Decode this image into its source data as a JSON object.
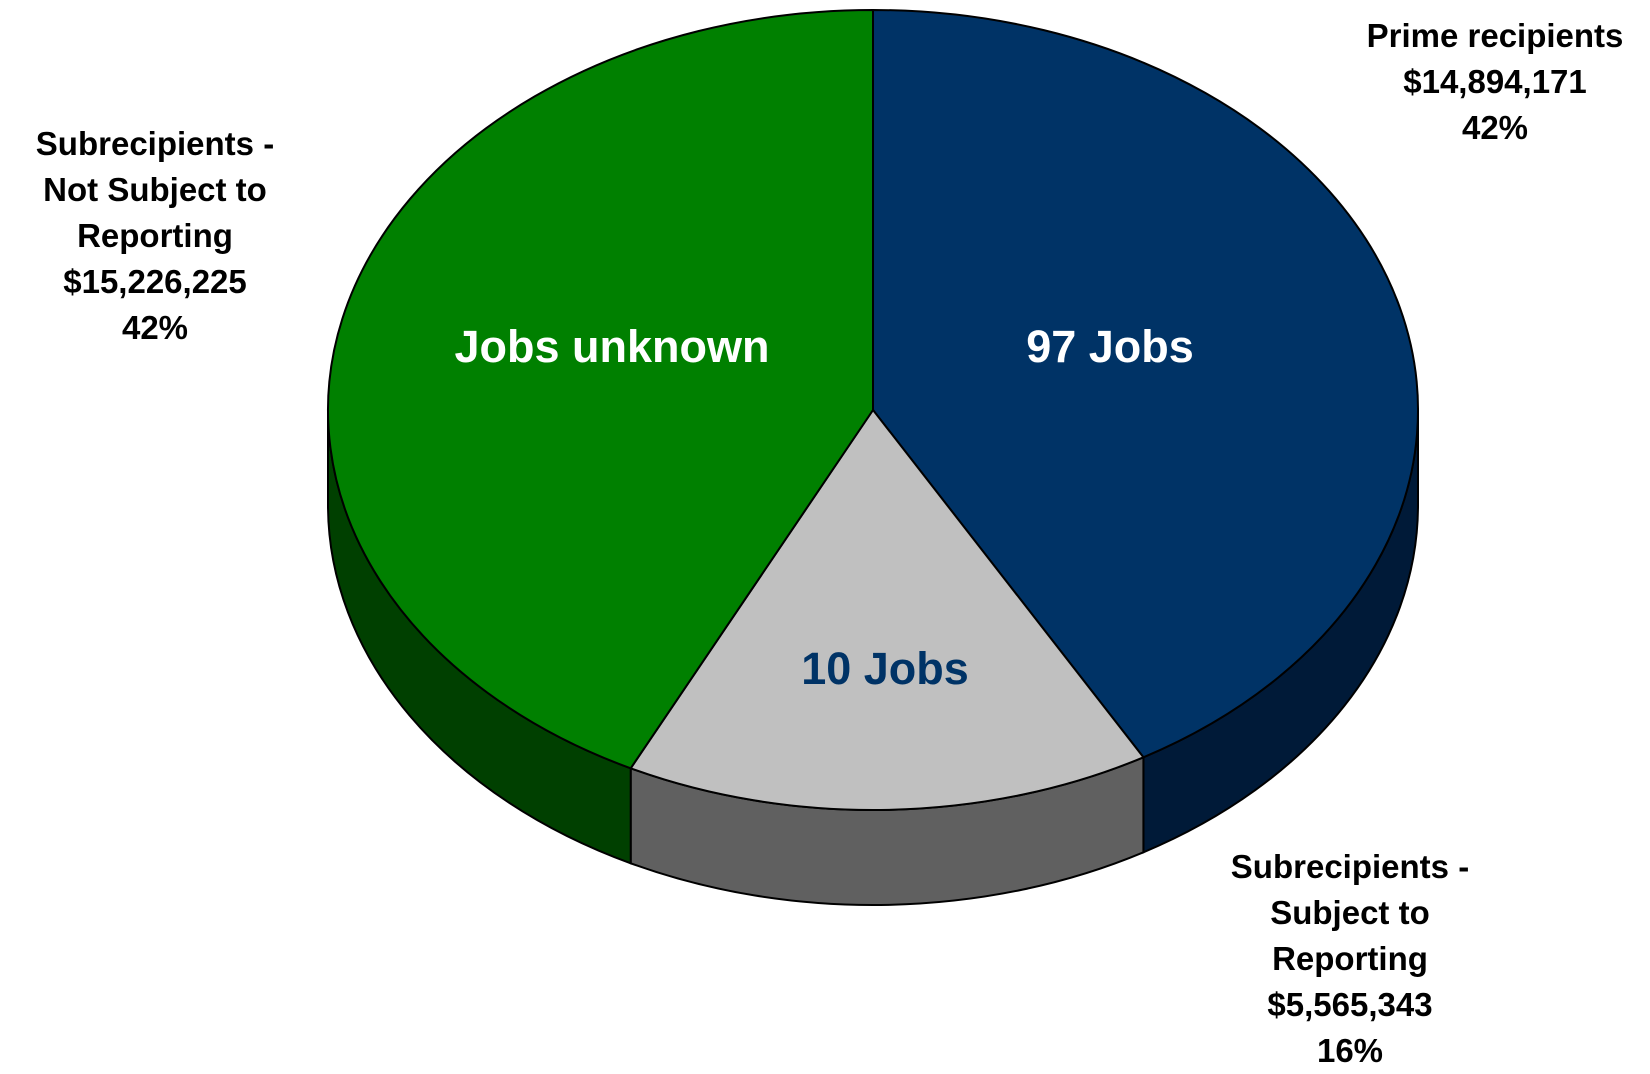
{
  "chart_data": {
    "type": "pie",
    "style": "3d",
    "slices": [
      {
        "name": "Prime recipients",
        "value": 14894171,
        "value_label": "$14,894,171",
        "percent": 42,
        "percent_label": "42%",
        "inside_label": "97 Jobs",
        "color": "#003366",
        "side_color": "#001a38",
        "inside_text_color": "#ffffff"
      },
      {
        "name": "Subrecipients - Subject to Reporting",
        "name_lines": [
          "Subrecipients -",
          "Subject to",
          "Reporting"
        ],
        "value": 5565343,
        "value_label": "$5,565,343",
        "percent": 16,
        "percent_label": "16%",
        "inside_label": "10 Jobs",
        "color": "#c0c0c0",
        "side_color": "#606060",
        "inside_text_color": "#003366"
      },
      {
        "name": "Subrecipients - Not Subject to Reporting",
        "name_lines": [
          "Subrecipients -",
          "Not Subject to",
          "Reporting"
        ],
        "value": 15226225,
        "value_label": "$15,226,225",
        "percent": 42,
        "percent_label": "42%",
        "inside_label": "Jobs unknown",
        "color": "#008000",
        "side_color": "#004000",
        "inside_text_color": "#ffffff"
      }
    ]
  }
}
